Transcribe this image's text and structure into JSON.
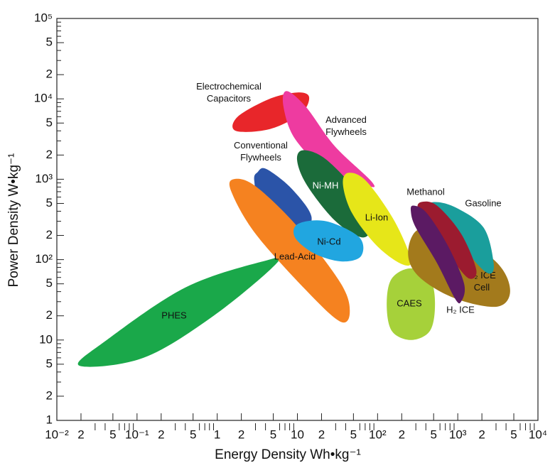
{
  "chart_data": {
    "type": "region",
    "xlabel": "Energy Density Wh•kg⁻¹",
    "ylabel": "Power Density W•kg⁻¹",
    "xscale": "log",
    "yscale": "log",
    "xlim": [
      0.01,
      10000
    ],
    "ylim": [
      1,
      100000
    ],
    "xticks": [
      {
        "value": 0.01,
        "label": "10⁻²"
      },
      {
        "value": 0.02,
        "label": "2"
      },
      {
        "value": 0.05,
        "label": "5"
      },
      {
        "value": 0.1,
        "label": "10⁻¹"
      },
      {
        "value": 0.2,
        "label": "2"
      },
      {
        "value": 0.5,
        "label": "5"
      },
      1,
      2,
      5,
      10,
      {
        "value": 20,
        "label": "2"
      },
      {
        "value": 50,
        "label": "5"
      },
      {
        "value": 100,
        "label": "10²"
      },
      {
        "value": 200,
        "label": "2"
      },
      {
        "value": 500,
        "label": "5"
      },
      {
        "value": 1000,
        "label": "10³"
      },
      {
        "value": 2000,
        "label": "2"
      },
      {
        "value": 5000,
        "label": "5"
      },
      {
        "value": 10000,
        "label": "10⁴"
      }
    ],
    "xminorticks": [
      0.03,
      0.04,
      0.06,
      0.07,
      0.08,
      0.09,
      0.3,
      0.4,
      0.6,
      0.7,
      0.8,
      0.9,
      3,
      4,
      6,
      7,
      8,
      9,
      30,
      40,
      60,
      70,
      80,
      90,
      300,
      400,
      600,
      700,
      800,
      900,
      3000,
      4000,
      6000,
      7000,
      8000,
      9000
    ],
    "yticks": [
      1,
      2,
      5,
      10,
      {
        "value": 20,
        "label": "2"
      },
      {
        "value": 50,
        "label": "5"
      },
      {
        "value": 100,
        "label": "10²"
      },
      {
        "value": 200,
        "label": "2"
      },
      {
        "value": 500,
        "label": "5"
      },
      {
        "value": 1000,
        "label": "10³"
      },
      {
        "value": 2000,
        "label": "2"
      },
      {
        "value": 5000,
        "label": "5"
      },
      {
        "value": 10000,
        "label": "10⁴"
      },
      {
        "value": 20000,
        "label": "2"
      },
      {
        "value": 50000,
        "label": "5"
      },
      {
        "value": 100000,
        "label": "10⁵"
      }
    ],
    "yminorticks": [
      3,
      4,
      6,
      7,
      8,
      9,
      30,
      40,
      60,
      70,
      80,
      90,
      300,
      400,
      600,
      700,
      800,
      900,
      3000,
      4000,
      6000,
      7000,
      8000,
      9000,
      30000,
      40000,
      60000,
      70000,
      80000,
      90000
    ],
    "series": [
      {
        "name": [
          "PHES"
        ],
        "color": "#1aa84a",
        "label_color": "#111",
        "x": [
          0.019,
          0.12,
          0.9,
          5.5,
          3.7,
          0.4,
          0.042
        ],
        "y": [
          4.8,
          6,
          20,
          90,
          95,
          45,
          10
        ]
      },
      {
        "name": [
          "Electrochemical",
          "Capacitors"
        ],
        "color": "#e8262a",
        "label_color": "#111",
        "x": [
          1.7,
          1.8,
          4.5,
          10,
          14,
          11,
          4.5
        ],
        "y": [
          4000,
          6000,
          10000,
          12000,
          10500,
          6500,
          4200
        ]
      },
      {
        "name": [
          "Advanced",
          "Flywheels"
        ],
        "color": "#ee3ba0",
        "label_color": "#111",
        "x": [
          7.3,
          12.7,
          29,
          83,
          76,
          23,
          9.3,
          6.7
        ],
        "y": [
          12500,
          8000,
          2600,
          950,
          820,
          1300,
          3200,
          8000
        ]
      },
      {
        "name": [
          "Conventional",
          "Flywheels"
        ],
        "color": "#2b54a8",
        "label_color": "#111",
        "x": [
          4.1,
          8.4,
          15,
          10.3,
          3.7,
          2.9,
          3.2
        ],
        "y": [
          1340,
          770,
          340,
          210,
          380,
          950,
          1230
        ]
      },
      {
        "name": [
          "Lead-Acid"
        ],
        "color": "#f58220",
        "label_color": "#111",
        "x": [
          1.6,
          3,
          10.3,
          35,
          45,
          34,
          13,
          3,
          1.5
        ],
        "y": [
          1000,
          820,
          250,
          50,
          22,
          17,
          41,
          210,
          700
        ]
      },
      {
        "name": [
          "Ni-MH"
        ],
        "color": "#1b6b3a",
        "label_color": "#ffffff",
        "x": [
          12,
          23,
          59,
          80,
          62,
          29,
          13,
          9.9
        ],
        "y": [
          2300,
          1750,
          630,
          250,
          190,
          310,
          860,
          1750
        ]
      },
      {
        "name": [
          "Li-Ion"
        ],
        "color": "#e6e619",
        "label_color": "#111",
        "x": [
          43,
          72,
          160,
          260,
          200,
          97,
          48,
          37
        ],
        "y": [
          1200,
          950,
          310,
          100,
          88,
          150,
          380,
          860
        ]
      },
      {
        "name": [
          "Ni-Cd"
        ],
        "color": "#21a6e0",
        "label_color": "#111",
        "x": [
          10.3,
          23,
          59,
          62,
          35,
          16,
          9.3
        ],
        "y": [
          280,
          300,
          190,
          110,
          95,
          120,
          190
        ]
      },
      {
        "name": [
          "CAES"
        ],
        "color": "#a6d13a",
        "label_color": "#111",
        "x": [
          260,
          450,
          520,
          450,
          260,
          150,
          130,
          150
        ],
        "y": [
          78,
          58,
          28,
          13,
          10,
          13,
          28,
          58
        ]
      },
      {
        "name": [
          "H₂ ICE",
          "Cell"
        ],
        "color": "#a37a1c",
        "label_color": "#111",
        "x": [
          330,
          920,
          3100,
          4500,
          3100,
          920,
          330,
          240
        ],
        "y": [
          240,
          210,
          91,
          41,
          26,
          33,
          61,
          120
        ]
      },
      {
        "name": [
          "Gasoline"
        ],
        "color": "#1a9e9c",
        "label_color": "#111",
        "x": [
          500,
          920,
          2100,
          2800,
          2500,
          1700,
          920,
          450
        ],
        "y": [
          520,
          450,
          250,
          91,
          67,
          91,
          210,
          420
        ]
      },
      {
        "name": [
          "Methanol"
        ],
        "color": "#9b1b2f",
        "label_color": "#111",
        "x": [
          350,
          550,
          1100,
          1700,
          1400,
          920,
          450,
          320
        ],
        "y": [
          520,
          470,
          210,
          75,
          58,
          91,
          250,
          420
        ]
      },
      {
        "name": [
          "H₂ ICE"
        ],
        "color": "#5b1a63",
        "label_color": "#111",
        "x": [
          280,
          410,
          750,
          1200,
          1100,
          920,
          550,
          300,
          260
        ],
        "y": [
          470,
          380,
          150,
          50,
          30,
          33,
          91,
          250,
          400
        ]
      }
    ]
  }
}
